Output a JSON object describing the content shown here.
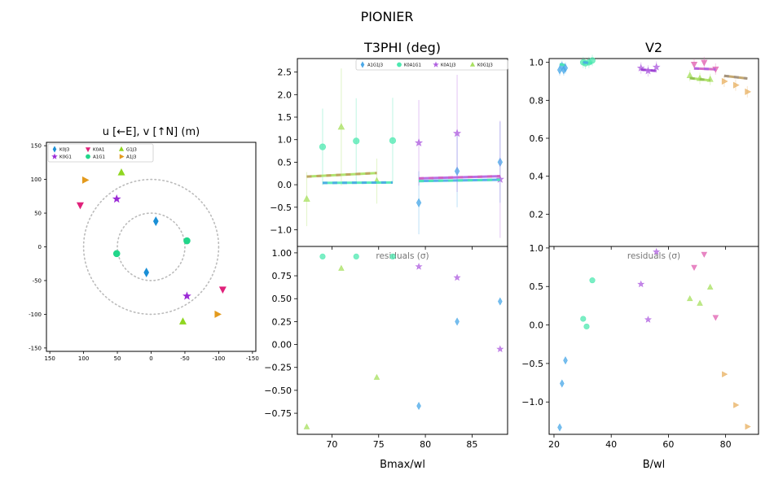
{
  "figure": {
    "suptitle": "PIONIER"
  },
  "chart_data": [
    {
      "id": "uv",
      "type": "scatter",
      "title": "u [←E], v [↑N] (m)",
      "xlim": [
        155,
        -155
      ],
      "ylim": [
        -155,
        155
      ],
      "xticks": [
        150,
        100,
        50,
        0,
        -50,
        -100,
        -150
      ],
      "yticks": [
        150,
        100,
        50,
        0,
        -50,
        -100,
        -150
      ],
      "circles": [
        50,
        100
      ],
      "legend": {
        "placement": "upper-left",
        "entries": [
          {
            "label": "K0J3",
            "color": "#1a8fd6",
            "marker": "diamond"
          },
          {
            "label": "K0G1",
            "color": "#9b2ad6",
            "marker": "star"
          },
          {
            "label": "K0A1",
            "color": "#e0207a",
            "marker": "tri-down"
          },
          {
            "label": "A1G1",
            "color": "#22d68a",
            "marker": "circle"
          },
          {
            "label": "G1J3",
            "color": "#8fd620",
            "marker": "tri-up"
          },
          {
            "label": "A1J3",
            "color": "#e39a1d",
            "marker": "tri-right"
          }
        ]
      },
      "series": [
        {
          "name": "K0J3",
          "color": "#1a8fd6",
          "marker": "diamond",
          "points": [
            [
              -7,
              38
            ],
            [
              7,
              -38
            ]
          ]
        },
        {
          "name": "A1G1",
          "color": "#22d68a",
          "marker": "circle",
          "points": [
            [
              -53,
              9
            ],
            [
              51,
              -10
            ]
          ]
        },
        {
          "name": "K0G1",
          "color": "#9b2ad6",
          "marker": "star",
          "points": [
            [
              51,
              71
            ],
            [
              -53,
              -73
            ]
          ]
        },
        {
          "name": "K0A1",
          "color": "#e0207a",
          "marker": "tri-down",
          "points": [
            [
              105,
              62
            ],
            [
              -106,
              -63
            ]
          ]
        },
        {
          "name": "G1J3",
          "color": "#8fd620",
          "marker": "tri-up",
          "points": [
            [
              44,
              110
            ],
            [
              -47,
              -111
            ]
          ]
        },
        {
          "name": "A1J3",
          "color": "#e39a1d",
          "marker": "tri-right",
          "points": [
            [
              98,
              99
            ],
            [
              -98,
              -100
            ]
          ]
        }
      ]
    },
    {
      "id": "t3phi",
      "type": "scatter",
      "title": "T3PHI (deg)",
      "xlim": [
        66.3,
        88.8
      ],
      "ylim": [
        -1.37,
        2.8
      ],
      "xticks": [
        70,
        75,
        80,
        85
      ],
      "yticks": [
        -1.0,
        -0.5,
        0.0,
        0.5,
        1.0,
        1.5,
        2.0,
        2.5
      ],
      "legend": {
        "placement": "top-right",
        "entries": [
          {
            "label": "A1G1J3",
            "color": "#4aa8e8",
            "marker": "diamond"
          },
          {
            "label": "K0A1G1",
            "color": "#4de8b0",
            "marker": "circle"
          },
          {
            "label": "K0A1J3",
            "color": "#b060e0",
            "marker": "star"
          },
          {
            "label": "K0G1J3",
            "color": "#a8e060",
            "marker": "tri-up"
          }
        ]
      },
      "series": [
        {
          "name": "A1G1J3",
          "color": "#4aa8e8",
          "marker": "diamond",
          "points": [
            [
              79.3,
              -0.4,
              0.7
            ],
            [
              83.4,
              0.3,
              0.8
            ],
            [
              88.0,
              0.5,
              0.9
            ]
          ]
        },
        {
          "name": "K0A1G1",
          "color": "#4de8b0",
          "marker": "circle",
          "points": [
            [
              69.0,
              0.84,
              0.85
            ],
            [
              72.6,
              0.97,
              0.95
            ],
            [
              76.5,
              0.98,
              0.95
            ]
          ]
        },
        {
          "name": "K0A1J3",
          "color": "#b060e0",
          "marker": "star",
          "points": [
            [
              79.3,
              0.93,
              0.95
            ],
            [
              83.4,
              1.14,
              1.3
            ],
            [
              88.0,
              0.12,
              1.3
            ]
          ]
        },
        {
          "name": "K0G1J3",
          "color": "#a8e060",
          "marker": "tri-up",
          "points": [
            [
              67.3,
              -0.32,
              0.6
            ],
            [
              71.0,
              1.28,
              1.3
            ],
            [
              74.8,
              0.08,
              0.5
            ]
          ]
        }
      ],
      "model_segments": [
        {
          "colors": [
            "#4de8b0",
            "#4aa8e8"
          ],
          "x": [
            69.0,
            76.5
          ],
          "y": [
            0.04,
            0.05
          ]
        },
        {
          "colors": [
            "#a8e060",
            "#c0a060"
          ],
          "x": [
            67.3,
            74.8
          ],
          "y": [
            0.18,
            0.26
          ]
        },
        {
          "colors": [
            "#4aa8e8",
            "#4de8b0"
          ],
          "x": [
            79.3,
            88.0
          ],
          "y": [
            0.08,
            0.11
          ]
        },
        {
          "colors": [
            "#b060e0",
            "#d060c0"
          ],
          "x": [
            79.3,
            88.0
          ],
          "y": [
            0.14,
            0.19
          ]
        }
      ]
    },
    {
      "id": "t3phi_res",
      "type": "scatter",
      "annotation": "residuals (σ)",
      "xlabel": "Bmax/wl",
      "xlim": [
        66.3,
        88.8
      ],
      "ylim": [
        -0.98,
        1.07
      ],
      "xticks": [
        70,
        75,
        80,
        85
      ],
      "yticks": [
        -0.75,
        -0.5,
        -0.25,
        0.0,
        0.25,
        0.5,
        0.75,
        1.0
      ],
      "series": [
        {
          "name": "A1G1J3",
          "color": "#4aa8e8",
          "marker": "diamond",
          "points": [
            [
              79.3,
              -0.67
            ],
            [
              83.4,
              0.25
            ],
            [
              88.0,
              0.47
            ]
          ]
        },
        {
          "name": "K0A1G1",
          "color": "#4de8b0",
          "marker": "circle",
          "points": [
            [
              69.0,
              0.96
            ],
            [
              72.6,
              0.96
            ],
            [
              76.5,
              0.96
            ]
          ]
        },
        {
          "name": "K0A1J3",
          "color": "#b060e0",
          "marker": "star",
          "points": [
            [
              79.3,
              0.85
            ],
            [
              83.4,
              0.73
            ],
            [
              88.0,
              -0.05
            ]
          ]
        },
        {
          "name": "K0G1J3",
          "color": "#a8e060",
          "marker": "tri-up",
          "points": [
            [
              67.3,
              -0.9
            ],
            [
              71.0,
              0.83
            ],
            [
              74.8,
              -0.36
            ]
          ]
        }
      ]
    },
    {
      "id": "v2",
      "type": "scatter",
      "title": "V2",
      "xlim": [
        18.3,
        91.5
      ],
      "ylim": [
        0.03,
        1.02
      ],
      "xticks": [
        20,
        40,
        60,
        80
      ],
      "yticks": [
        0.2,
        0.4,
        0.6,
        0.8,
        1.0
      ],
      "series": [
        {
          "name": "K0J3",
          "color": "#4aa8e8",
          "marker": "diamond",
          "points": [
            [
              22.0,
              0.96
            ],
            [
              22.8,
              0.98
            ],
            [
              23.4,
              0.96
            ],
            [
              24.0,
              0.97
            ]
          ]
        },
        {
          "name": "A1G1",
          "color": "#4de8b0",
          "marker": "circle",
          "points": [
            [
              30.2,
              1.0
            ],
            [
              31.0,
              0.995
            ],
            [
              32.2,
              1.0
            ],
            [
              33.4,
              1.01
            ]
          ]
        },
        {
          "name": "K0G1",
          "color": "#b060e0",
          "marker": "star",
          "points": [
            [
              50.4,
              0.97
            ],
            [
              52.9,
              0.955
            ],
            [
              55.8,
              0.975
            ]
          ]
        },
        {
          "name": "K0A1",
          "color": "#e060b0",
          "marker": "tri-down",
          "points": [
            [
              69.0,
              0.99
            ],
            [
              72.5,
              1.0
            ],
            [
              76.5,
              0.965
            ]
          ]
        },
        {
          "name": "G1J3",
          "color": "#a8e060",
          "marker": "tri-up",
          "points": [
            [
              67.5,
              0.93
            ],
            [
              71.0,
              0.915
            ],
            [
              74.6,
              0.91
            ]
          ]
        },
        {
          "name": "A1J3",
          "color": "#e8b060",
          "marker": "tri-right",
          "points": [
            [
              79.5,
              0.9
            ],
            [
              83.5,
              0.88
            ],
            [
              87.6,
              0.845
            ]
          ]
        }
      ],
      "model_segments": [
        {
          "colors": [
            "#4aa8e8",
            "#4de8b0"
          ],
          "x": [
            22.0,
            24.0
          ],
          "y": [
            0.99,
            0.985
          ]
        },
        {
          "colors": [
            "#4de8b0",
            "#4aa8e8"
          ],
          "x": [
            30.2,
            33.4
          ],
          "y": [
            1.0,
            0.995
          ]
        },
        {
          "colors": [
            "#b060e0",
            "#9b40d0"
          ],
          "x": [
            50.4,
            55.8
          ],
          "y": [
            0.962,
            0.955
          ]
        },
        {
          "colors": [
            "#d060c0",
            "#b060e0"
          ],
          "x": [
            69.0,
            76.5
          ],
          "y": [
            0.968,
            0.963
          ]
        },
        {
          "colors": [
            "#a8e060",
            "#90c050"
          ],
          "x": [
            67.5,
            74.6
          ],
          "y": [
            0.917,
            0.905
          ]
        },
        {
          "colors": [
            "#c0a060",
            "#a09080"
          ],
          "x": [
            79.5,
            87.6
          ],
          "y": [
            0.929,
            0.915
          ]
        }
      ]
    },
    {
      "id": "v2_res",
      "type": "scatter",
      "annotation": "residuals (σ)",
      "xlabel": "B/wl",
      "xlim": [
        18.3,
        91.5
      ],
      "ylim": [
        -1.42,
        1.02
      ],
      "xticks": [
        20,
        40,
        60,
        80
      ],
      "yticks": [
        -1.0,
        -0.5,
        0.0,
        0.5,
        1.0
      ],
      "series": [
        {
          "name": "K0J3",
          "color": "#4aa8e8",
          "marker": "diamond",
          "points": [
            [
              22.0,
              -1.33
            ],
            [
              22.8,
              -0.76
            ],
            [
              24.0,
              -0.46
            ]
          ]
        },
        {
          "name": "A1G1",
          "color": "#4de8b0",
          "marker": "circle",
          "points": [
            [
              30.2,
              0.08
            ],
            [
              31.4,
              -0.02
            ],
            [
              33.4,
              0.58
            ]
          ]
        },
        {
          "name": "K0G1",
          "color": "#b060e0",
          "marker": "star",
          "points": [
            [
              50.4,
              0.53
            ],
            [
              52.9,
              0.07
            ],
            [
              55.8,
              0.95
            ]
          ]
        },
        {
          "name": "K0A1",
          "color": "#e060b0",
          "marker": "tri-down",
          "points": [
            [
              69.0,
              0.75
            ],
            [
              72.5,
              0.92
            ],
            [
              76.5,
              0.1
            ]
          ]
        },
        {
          "name": "G1J3",
          "color": "#a8e060",
          "marker": "tri-up",
          "points": [
            [
              67.5,
              0.34
            ],
            [
              71.0,
              0.28
            ],
            [
              74.6,
              0.49
            ]
          ]
        },
        {
          "name": "A1J3",
          "color": "#e8b060",
          "marker": "tri-right",
          "points": [
            [
              79.5,
              -0.64
            ],
            [
              83.5,
              -1.04
            ],
            [
              87.6,
              -1.32
            ]
          ]
        }
      ]
    }
  ]
}
